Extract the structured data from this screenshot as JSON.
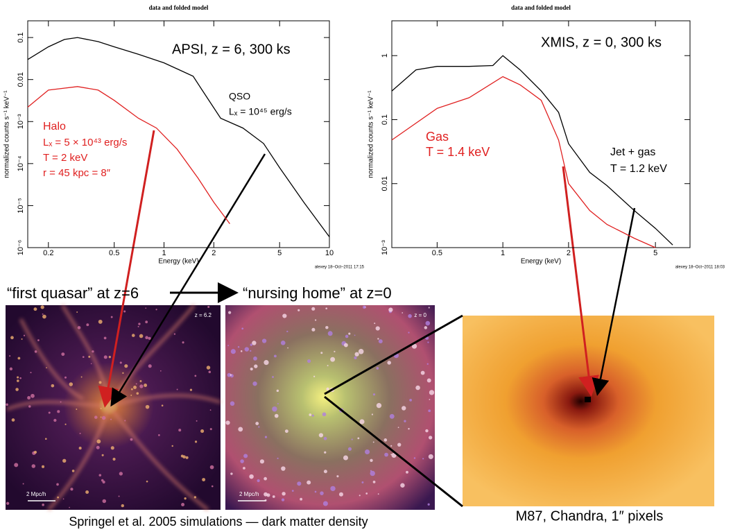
{
  "chart_data": [
    {
      "type": "line",
      "title": "data and folded model",
      "xlabel": "Energy (keV)",
      "ylabel": "normalized counts s⁻¹ keV⁻¹",
      "xscale": "log",
      "yscale": "log",
      "xlim": [
        0.15,
        10
      ],
      "ylim": [
        1e-06,
        0.25
      ],
      "xticks": [
        0.2,
        0.5,
        1,
        2,
        5,
        10
      ],
      "yticks": [
        {
          "value": 0.1,
          "label": "0.1"
        },
        {
          "value": 0.01,
          "label": "0.01"
        },
        {
          "value": 0.001,
          "label": "10⁻³"
        },
        {
          "value": 0.0001,
          "label": "10⁻⁴"
        },
        {
          "value": 1e-05,
          "label": "10⁻⁵"
        },
        {
          "value": 1e-06,
          "label": "10⁻⁶"
        }
      ],
      "series": [
        {
          "color": "#000000",
          "x": [
            0.15,
            0.2,
            0.25,
            0.3,
            0.4,
            0.5,
            0.7,
            1,
            1.5,
            1.7,
            2.2,
            3,
            4,
            5,
            7,
            10
          ],
          "values": [
            0.03,
            0.06,
            0.09,
            0.1,
            0.08,
            0.06,
            0.04,
            0.025,
            0.012,
            0.0056,
            0.0012,
            0.0007,
            0.0003,
            8e-05,
            1.2e-05,
            1.8e-06
          ]
        },
        {
          "color": "#e02020",
          "x": [
            0.15,
            0.2,
            0.3,
            0.4,
            0.5,
            0.7,
            0.9,
            1.2,
            1.6,
            2,
            2.5
          ],
          "values": [
            0.0022,
            0.0056,
            0.0068,
            0.0056,
            0.0032,
            0.0012,
            0.0007,
            0.00022,
            4.6e-05,
            1.2e-05,
            3.7e-06
          ]
        }
      ],
      "annotations": [
        {
          "text": "APSI, z = 6, 300 ks",
          "color": "#000000"
        },
        {
          "text": "QSO",
          "color": "#000000"
        },
        {
          "text": "Lₓ = 10⁴⁵ erg/s",
          "color": "#000000"
        },
        {
          "text": "Halo",
          "color": "#e02020"
        },
        {
          "text": "Lₓ = 5 × 10⁴³ erg/s",
          "color": "#e02020"
        },
        {
          "text": "T = 2 keV",
          "color": "#e02020"
        },
        {
          "text": "r = 45 kpc = 8″",
          "color": "#e02020"
        }
      ],
      "footnote": "alexey 18–Oct–2011 17:15"
    },
    {
      "type": "line",
      "title": "data and folded model",
      "xlabel": "Energy (keV)",
      "ylabel": "normalized counts s⁻¹ keV⁻¹",
      "xscale": "log",
      "yscale": "log",
      "xlim": [
        0.31,
        7.2
      ],
      "ylim": [
        0.001,
        3.5
      ],
      "xticks": [
        0.5,
        1,
        2,
        5
      ],
      "yticks": [
        1,
        0.1,
        0.01,
        {
          "value": 0.001,
          "label": "10⁻³"
        }
      ],
      "series": [
        {
          "color": "#000000",
          "x": [
            0.31,
            0.4,
            0.5,
            0.7,
            0.9,
            1,
            1.2,
            1.5,
            1.8,
            2,
            2.5,
            3,
            4,
            5,
            6
          ],
          "values": [
            0.28,
            0.6,
            0.68,
            0.68,
            0.7,
            1,
            0.6,
            0.28,
            0.13,
            0.042,
            0.015,
            0.0093,
            0.0038,
            0.002,
            0.0011
          ]
        },
        {
          "color": "#e02020",
          "x": [
            0.31,
            0.5,
            0.7,
            1,
            1.2,
            1.5,
            1.8,
            2,
            2.5,
            3,
            4,
            5
          ],
          "values": [
            0.048,
            0.15,
            0.22,
            0.47,
            0.35,
            0.2,
            0.048,
            0.01,
            0.0038,
            0.0023,
            0.0014,
            0.001
          ]
        }
      ],
      "annotations": [
        {
          "text": "XMIS, z = 0, 300 ks",
          "color": "#000000"
        },
        {
          "text": "Gas",
          "color": "#e02020"
        },
        {
          "text": "T = 1.4 keV",
          "color": "#e02020"
        },
        {
          "text": "Jet + gas",
          "color": "#000000"
        },
        {
          "text": "T = 1.2 keV",
          "color": "#000000"
        }
      ],
      "footnote": "alexey 18–Oct–2011 18:03"
    }
  ],
  "figure": {
    "headings": [
      "“first quasar” at z=6",
      "“nursing home” at z=0"
    ],
    "panels": [
      {
        "label": "z = 6.2",
        "scale": "2 Mpc/h"
      },
      {
        "label": "z = 0",
        "scale": "2 Mpc/h"
      }
    ],
    "captions": [
      "Springel et al. 2005 simulations — dark matter density",
      "M87, Chandra, 1″ pixels"
    ]
  }
}
